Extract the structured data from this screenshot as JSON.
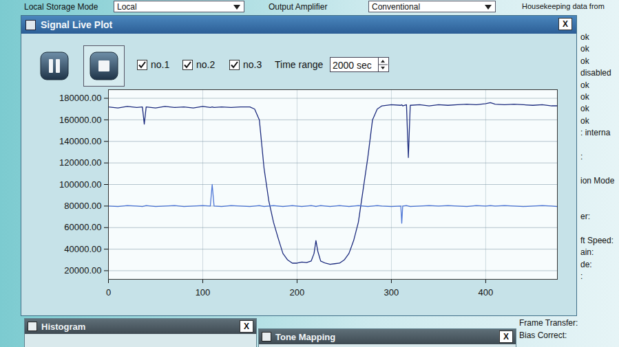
{
  "background": {
    "top_bar": [
      {
        "label": "Local Storage Mode",
        "value": "Local"
      },
      {
        "label": "Output Amplifier",
        "value": "Conventional"
      },
      {
        "label": "Housekeeping data from"
      }
    ],
    "status_list": [
      "ok",
      "ok",
      "ok",
      "disabled",
      "ok",
      "ok",
      "ok",
      "ok",
      ": interna",
      ":",
      "ion Mode",
      "er:",
      "ft Speed:",
      "ain:",
      "de:",
      ":"
    ],
    "bottom_panels": [
      "Histogram",
      "Tone Mapping"
    ],
    "bottom_fields": [
      "Frame Transfer:",
      "Bias Correct:"
    ]
  },
  "window": {
    "title": "Signal Live Plot",
    "close": "X",
    "checkboxes": [
      "no.1",
      "no.2",
      "no.3"
    ],
    "time_range_label": "Time range",
    "time_range_value": "2000 sec"
  },
  "chart_data": {
    "type": "line",
    "x": [
      0,
      10,
      20,
      30,
      36,
      38,
      40,
      50,
      60,
      70,
      80,
      90,
      100,
      108,
      110,
      112,
      120,
      130,
      140,
      150,
      155,
      160,
      165,
      170,
      175,
      180,
      185,
      190,
      195,
      200,
      205,
      210,
      215,
      218,
      220,
      222,
      225,
      230,
      235,
      240,
      245,
      250,
      255,
      260,
      265,
      270,
      275,
      280,
      285,
      290,
      300,
      310,
      311,
      312,
      316,
      318,
      320,
      330,
      340,
      350,
      360,
      370,
      380,
      390,
      400,
      405,
      410,
      420,
      430,
      440,
      450,
      460,
      470,
      476
    ],
    "series": [
      {
        "name": "no.1",
        "color": "#1c2b7e",
        "values": [
          172000,
          171000,
          172500,
          171500,
          172000,
          156000,
          172000,
          171000,
          172500,
          171500,
          172000,
          171000,
          172500,
          171500,
          172000,
          171500,
          172000,
          171500,
          172000,
          172000,
          170000,
          160000,
          115000,
          85000,
          65000,
          50000,
          36000,
          30000,
          27000,
          27000,
          28000,
          27500,
          29000,
          36000,
          48000,
          38000,
          29000,
          27000,
          26000,
          26500,
          27000,
          30000,
          36000,
          48000,
          65000,
          95000,
          125000,
          160000,
          170000,
          173000,
          174000,
          173500,
          174000,
          173000,
          174000,
          125000,
          173500,
          174000,
          173000,
          174000,
          173500,
          174000,
          174500,
          174000,
          175000,
          176000,
          174500,
          174000,
          174500,
          174000,
          173500,
          174000,
          173000,
          173000
        ]
      },
      {
        "name": "no.2",
        "color": "#4f77d6",
        "values": [
          80000,
          79500,
          80500,
          80000,
          79500,
          80000,
          80500,
          79500,
          80000,
          80500,
          79500,
          80000,
          80500,
          80000,
          100000,
          80000,
          79500,
          80500,
          80000,
          79500,
          80000,
          80500,
          79500,
          80000,
          80500,
          80000,
          79500,
          80000,
          80500,
          80000,
          79500,
          80000,
          80500,
          80000,
          79500,
          80000,
          80500,
          80000,
          79500,
          80000,
          80500,
          80000,
          79500,
          80000,
          80500,
          80000,
          79500,
          80000,
          80500,
          80000,
          79500,
          80000,
          64000,
          80000,
          80500,
          80000,
          79500,
          80000,
          80500,
          80000,
          80500,
          80000,
          79500,
          80500,
          80000,
          80500,
          80000,
          80500,
          80000,
          79500,
          80000,
          80500,
          80000,
          79500
        ]
      }
    ],
    "xlim": [
      0,
      476
    ],
    "ylim": [
      12000,
      188000
    ],
    "xticks": [
      0,
      100,
      200,
      300,
      400
    ],
    "yticks": [
      {
        "value": 20000,
        "label": "20000.00"
      },
      {
        "value": 40000,
        "label": "40000.00"
      },
      {
        "value": 60000,
        "label": "60000.00"
      },
      {
        "value": 80000,
        "label": "80000.00"
      },
      {
        "value": 100000,
        "label": "100000.00"
      },
      {
        "value": 120000,
        "label": "120000.00"
      },
      {
        "value": 140000,
        "label": "140000.00"
      },
      {
        "value": 160000,
        "label": "160000.00"
      },
      {
        "value": 180000,
        "label": "180000.00"
      }
    ],
    "grid": true
  }
}
